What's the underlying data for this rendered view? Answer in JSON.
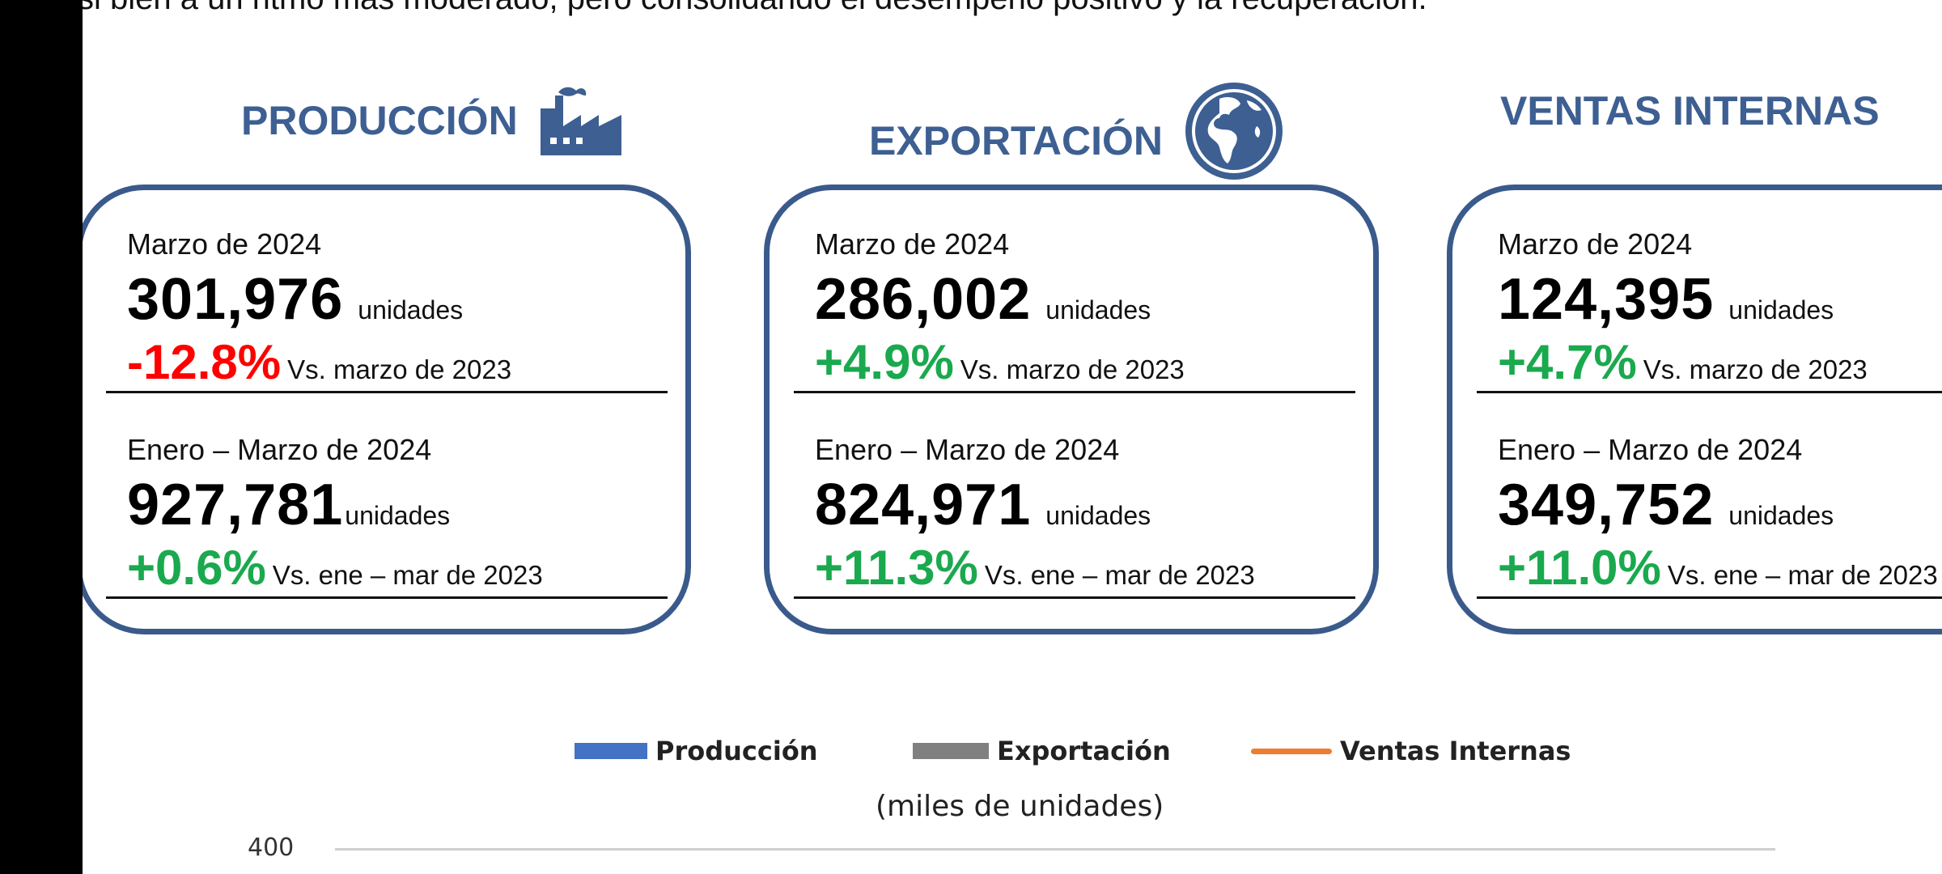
{
  "intro_text": "si bien a un ritmo más moderado, pero consolidando el desempeño positivo y la recuperación.",
  "colors": {
    "heading": "#3d5f92",
    "negative": "#ff0000",
    "positive": "#1aa94e",
    "card_border": "#3a5a8c"
  },
  "cards": [
    {
      "title": "PRODUCCIÓN",
      "icon": "factory-icon",
      "month": {
        "period": "Marzo de 2024",
        "value": "301,976",
        "unit": "unidades",
        "change": "-12.8%",
        "comparison": "Vs. marzo de 2023"
      },
      "ytd": {
        "period": "Enero – Marzo de 2024",
        "value": "927,781",
        "unit": "unidades",
        "change": "+0.6%",
        "comparison": "Vs. ene – mar de 2023"
      }
    },
    {
      "title": "EXPORTACIÓN",
      "icon": "globe-icon",
      "month": {
        "period": "Marzo de 2024",
        "value": "286,002",
        "unit": "unidades",
        "change": "+4.9%",
        "comparison": "Vs. marzo de 2023"
      },
      "ytd": {
        "period": "Enero – Marzo de 2024",
        "value": "824,971",
        "unit": "unidades",
        "change": "+11.3%",
        "comparison": "Vs. ene – mar de 2023"
      }
    },
    {
      "title": "VENTAS INTERNAS",
      "icon": "",
      "month": {
        "period": "Marzo de 2024",
        "value": "124,395",
        "unit": "unidades",
        "change": "+4.7%",
        "comparison": "Vs. marzo de 2023"
      },
      "ytd": {
        "period": "Enero – Marzo de 2024",
        "value": "349,752",
        "unit": "unidades",
        "change": "+11.0%",
        "comparison": "Vs. ene – mar de 2023"
      }
    }
  ],
  "chart_data": {
    "type": "bar",
    "title": "",
    "subtitle": "(miles de unidades)",
    "series": [
      {
        "name": "Producción",
        "color": "#4472c4",
        "values": []
      },
      {
        "name": "Exportación",
        "color": "#808080",
        "values": []
      },
      {
        "name": "Ventas Internas",
        "color": "#ed7d31",
        "values": []
      }
    ],
    "legend_placement": "top",
    "y_tick_labels": [
      "400"
    ],
    "grid": true
  }
}
